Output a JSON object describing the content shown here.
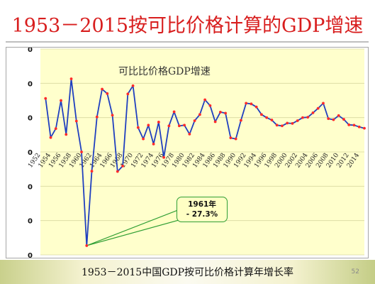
{
  "slide": {
    "title": "1953－2015按可比价格计算的GDP增速",
    "caption": "1953－2015中国GDP按可比价格计算年增长率",
    "page_number": "52"
  },
  "colors": {
    "title": "#d81e1e",
    "plot_bg": "#ffffcc",
    "line": "#1f3fbf",
    "marker": "#ff2a2a",
    "grid": "#d8d8a0",
    "callout_border": "#2f9e35",
    "callout_fill": "#ffffc4"
  },
  "chart_data": {
    "type": "line",
    "title": "可比比价格GDP增速",
    "x": [
      1953,
      1954,
      1955,
      1956,
      1957,
      1958,
      1959,
      1960,
      1961,
      1962,
      1963,
      1964,
      1965,
      1966,
      1967,
      1968,
      1969,
      1970,
      1971,
      1972,
      1973,
      1974,
      1975,
      1976,
      1977,
      1978,
      1979,
      1980,
      1981,
      1982,
      1983,
      1984,
      1985,
      1986,
      1987,
      1988,
      1989,
      1990,
      1991,
      1992,
      1993,
      1994,
      1995,
      1996,
      1997,
      1998,
      1999,
      2000,
      2001,
      2002,
      2003,
      2004,
      2005,
      2006,
      2007,
      2008,
      2009,
      2010,
      2011,
      2012,
      2013,
      2014,
      2015
    ],
    "series": [
      {
        "values": [
          15.6,
          4.2,
          6.8,
          15.0,
          5.1,
          21.3,
          9.0,
          0.0,
          -27.3,
          -5.6,
          10.2,
          18.3,
          17.0,
          10.7,
          -5.7,
          -4.1,
          16.9,
          19.3,
          7.1,
          3.8,
          7.8,
          2.3,
          8.7,
          -1.6,
          7.6,
          11.7,
          7.6,
          7.8,
          5.2,
          9.1,
          10.9,
          15.2,
          13.5,
          8.8,
          11.6,
          11.3,
          4.1,
          3.8,
          9.2,
          14.2,
          14.0,
          13.1,
          10.9,
          10.0,
          9.3,
          7.8,
          7.6,
          8.4,
          8.3,
          9.1,
          10.0,
          10.1,
          11.4,
          12.7,
          14.2,
          9.7,
          9.4,
          10.6,
          9.5,
          7.9,
          7.8,
          7.3,
          6.9
        ]
      }
    ],
    "x_tick_labels": [
      "1952",
      "1954",
      "1956",
      "1958",
      "1960",
      "1962",
      "1964",
      "1966",
      "1968",
      "1970",
      "1972",
      "1974",
      "1976",
      "1978",
      "1980",
      "1982",
      "1984",
      "1986",
      "1988",
      "1990",
      "1992",
      "1994",
      "1996",
      "1998",
      "2000",
      "2002",
      "2004",
      "2006",
      "2008",
      "2010",
      "2012",
      "2014"
    ],
    "y_tick_labels": [
      "0",
      "0",
      "0",
      "0",
      "0",
      "0",
      "0"
    ],
    "annotation": {
      "x": 1961,
      "line1": "1961年",
      "line2": "- 27.3%"
    },
    "ylim": [
      -30,
      30
    ],
    "grid": true
  }
}
